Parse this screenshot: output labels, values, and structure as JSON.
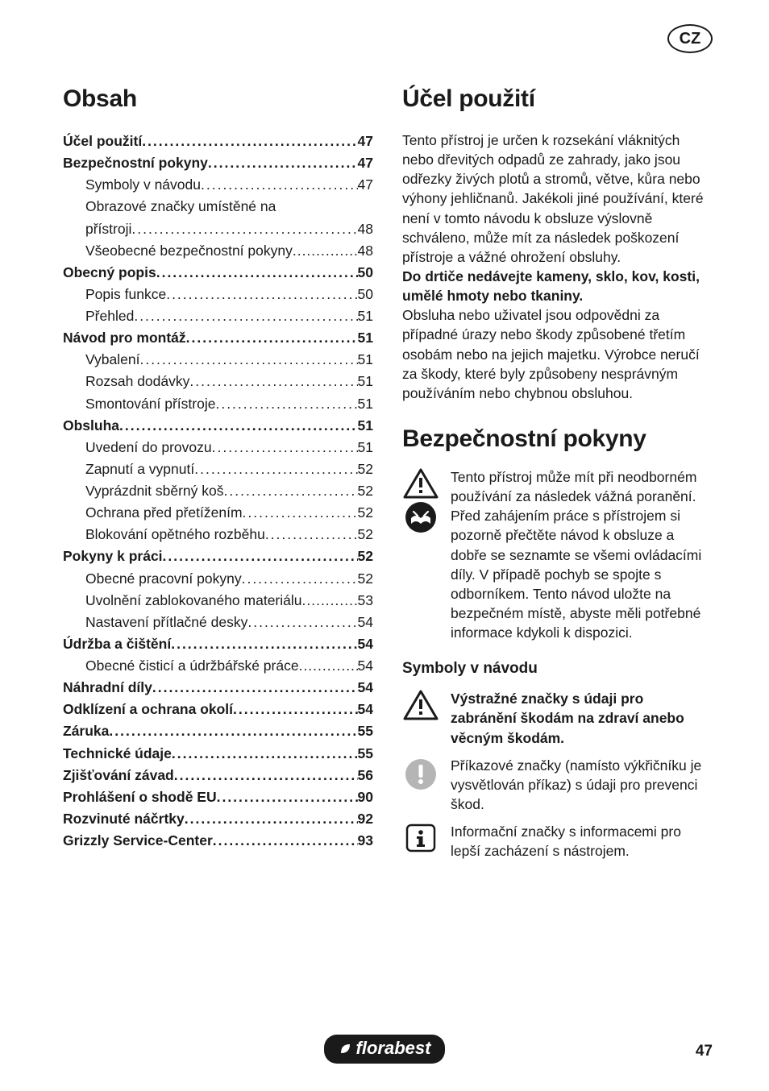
{
  "badge": "CZ",
  "toc_heading": "Obsah",
  "toc": [
    {
      "label": "Účel použití",
      "page": "47",
      "bold": true,
      "indent": 0
    },
    {
      "label": "Bezpečnostní pokyny",
      "page": "47",
      "bold": true,
      "indent": 0
    },
    {
      "label": "Symboly v návodu",
      "page": "47",
      "bold": false,
      "indent": 1
    },
    {
      "label": "Obrazové značky umístěné na",
      "cont": "přístroji",
      "page": "48",
      "bold": false,
      "indent": 1
    },
    {
      "label": "Všeobecné bezpečnostní pokyny",
      "page": "48",
      "bold": false,
      "indent": 1,
      "nogap": true
    },
    {
      "label": "Obecný popis",
      "page": "50",
      "bold": true,
      "indent": 0
    },
    {
      "label": "Popis funkce",
      "page": "50",
      "bold": false,
      "indent": 1
    },
    {
      "label": "Přehled",
      "page": "51",
      "bold": false,
      "indent": 1
    },
    {
      "label": "Návod pro montáž",
      "page": "51",
      "bold": true,
      "indent": 0
    },
    {
      "label": "Vybalení",
      "page": "51",
      "bold": false,
      "indent": 1
    },
    {
      "label": "Rozsah dodávky",
      "page": "51",
      "bold": false,
      "indent": 1
    },
    {
      "label": "Smontování přístroje",
      "page": "51",
      "bold": false,
      "indent": 1
    },
    {
      "label": "Obsluha",
      "page": "51",
      "bold": true,
      "indent": 0
    },
    {
      "label": "Uvedení do provozu",
      "page": "51",
      "bold": false,
      "indent": 1
    },
    {
      "label": "Zapnutí a vypnutí",
      "page": "52",
      "bold": false,
      "indent": 1
    },
    {
      "label": "Vyprázdnit sběrný koš",
      "page": "52",
      "bold": false,
      "indent": 1
    },
    {
      "label": "Ochrana před přetížením",
      "page": "52",
      "bold": false,
      "indent": 1
    },
    {
      "label": "Blokování opětného rozběhu",
      "page": "52",
      "bold": false,
      "indent": 1
    },
    {
      "label": "Pokyny k práci",
      "page": "52",
      "bold": true,
      "indent": 0
    },
    {
      "label": "Obecné pracovní pokyny",
      "page": "52",
      "bold": false,
      "indent": 1
    },
    {
      "label": "Uvolnění zablokovaného materiálu",
      "page": "53",
      "bold": false,
      "indent": 1,
      "nogap": true
    },
    {
      "label": "Nastavení přítlačné desky",
      "page": "54",
      "bold": false,
      "indent": 1
    },
    {
      "label": "Údržba a čištění",
      "page": "54",
      "bold": true,
      "indent": 0
    },
    {
      "label": "Obecné čisticí a údržbářské práce",
      "page": "54",
      "bold": false,
      "indent": 1,
      "nogap": true
    },
    {
      "label": "Náhradní díly",
      "page": "54",
      "bold": true,
      "indent": 0
    },
    {
      "label": "Odklízení a ochrana okolí",
      "page": "54",
      "bold": true,
      "indent": 0
    },
    {
      "label": "Záruka",
      "page": "55",
      "bold": true,
      "indent": 0
    },
    {
      "label": "Technické údaje",
      "page": "55",
      "bold": true,
      "indent": 0
    },
    {
      "label": "Zjišťování závad",
      "page": "56",
      "bold": true,
      "indent": 0
    },
    {
      "label": "Prohlášení o shodě EU",
      "page": "90",
      "bold": true,
      "indent": 0
    },
    {
      "label": "Rozvinuté náčrtky",
      "page": "92",
      "bold": true,
      "indent": 0
    },
    {
      "label": "Grizzly Service-Center",
      "page": "93",
      "bold": true,
      "indent": 0
    }
  ],
  "right_heading": "Účel použití",
  "intro_para": "Tento přístroj je určen k rozsekání vláknitých nebo dřevitých odpadů ze zahrady, jako jsou odřezky živých plotů a stromů, větve, kůra nebo výhony jehličnanů. Jakékoli jiné používání, které není v tomto návodu k obsluze výslovně schváleno, může mít za následek poškození přístroje a vážné ohrožení obsluhy.",
  "intro_bold": "Do drtiče nedávejte kameny, sklo, kov, kosti, umělé hmoty nebo tkaniny.",
  "intro_para2": "Obsluha nebo uživatel jsou odpovědni za případné úrazy nebo škody způsobené třetím osobám nebo na jejich majetku. Výrobce neručí za škody, které byly způsobeny nesprávným používáním nebo chybnou obsluhou.",
  "safety_heading": "Bezpečnostní pokyny",
  "safety_callout": "Tento přístroj může mít při neodborném používání za následek vážná poranění. Před zahájením práce s přístrojem si pozorně přečtěte návod k obsluze a dobře se seznamte se všemi ovládacími díly. V případě pochyb se spojte s odborníkem. Tento návod uložte na bezpečném místě, abyste měli potřebné informace kdykoli k dispozici.",
  "symbols_heading": "Symboly v návodu",
  "sym1": "Výstražné značky s údaji pro zabránění škodám na zdraví anebo věcným škodám.",
  "sym2": "Příkazové značky (namísto výkřičníku je vysvětlován příkaz) s údaji pro prevenci škod.",
  "sym3": "Informační značky s informacemi pro lepší zacházení s nástrojem.",
  "brand": "florabest",
  "page_number": "47",
  "colors": {
    "text": "#1a1a1a",
    "bg": "#ffffff",
    "brand_bg": "#1a1a1a",
    "brand_fg": "#ffffff"
  }
}
